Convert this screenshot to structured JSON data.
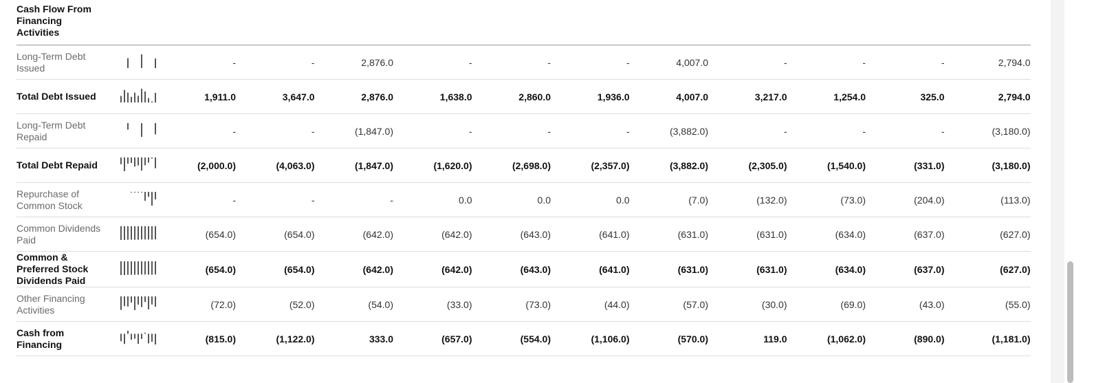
{
  "header": {
    "title": "Cash Flow From Financing Activities"
  },
  "rows": [
    {
      "label": "Long-Term Debt Issued",
      "bold": false,
      "values": [
        "-",
        "-",
        "2,876.0",
        "-",
        "-",
        "-",
        "4,007.0",
        "-",
        "-",
        "-",
        "2,794.0"
      ]
    },
    {
      "label": "Total Debt Issued",
      "bold": true,
      "values": [
        "1,911.0",
        "3,647.0",
        "2,876.0",
        "1,638.0",
        "2,860.0",
        "1,936.0",
        "4,007.0",
        "3,217.0",
        "1,254.0",
        "325.0",
        "2,794.0"
      ]
    },
    {
      "label": "Long-Term Debt Repaid",
      "bold": false,
      "values": [
        "-",
        "-",
        "(1,847.0)",
        "-",
        "-",
        "-",
        "(3,882.0)",
        "-",
        "-",
        "-",
        "(3,180.0)"
      ]
    },
    {
      "label": "Total Debt Repaid",
      "bold": true,
      "values": [
        "(2,000.0)",
        "(4,063.0)",
        "(1,847.0)",
        "(1,620.0)",
        "(2,698.0)",
        "(2,357.0)",
        "(3,882.0)",
        "(2,305.0)",
        "(1,540.0)",
        "(331.0)",
        "(3,180.0)"
      ]
    },
    {
      "label": "Repurchase of Common Stock",
      "bold": false,
      "values": [
        "-",
        "-",
        "-",
        "0.0",
        "0.0",
        "0.0",
        "(7.0)",
        "(132.0)",
        "(73.0)",
        "(204.0)",
        "(113.0)"
      ]
    },
    {
      "label": "Common Dividends Paid",
      "bold": false,
      "values": [
        "(654.0)",
        "(654.0)",
        "(642.0)",
        "(642.0)",
        "(643.0)",
        "(641.0)",
        "(631.0)",
        "(631.0)",
        "(634.0)",
        "(637.0)",
        "(627.0)"
      ]
    },
    {
      "label": "Common & Preferred Stock Dividends Paid",
      "bold": true,
      "values": [
        "(654.0)",
        "(654.0)",
        "(642.0)",
        "(642.0)",
        "(643.0)",
        "(641.0)",
        "(631.0)",
        "(631.0)",
        "(634.0)",
        "(637.0)",
        "(627.0)"
      ]
    },
    {
      "label": "Other Financing Activities",
      "bold": false,
      "values": [
        "(72.0)",
        "(52.0)",
        "(54.0)",
        "(33.0)",
        "(73.0)",
        "(44.0)",
        "(57.0)",
        "(30.0)",
        "(69.0)",
        "(43.0)",
        "(55.0)"
      ]
    },
    {
      "label": "Cash from Financing",
      "bold": true,
      "values": [
        "(815.0)",
        "(1,122.0)",
        "333.0",
        "(657.0)",
        "(554.0)",
        "(1,106.0)",
        "(570.0)",
        "119.0",
        "(1,062.0)",
        "(890.0)",
        "(1,181.0)"
      ]
    }
  ]
}
